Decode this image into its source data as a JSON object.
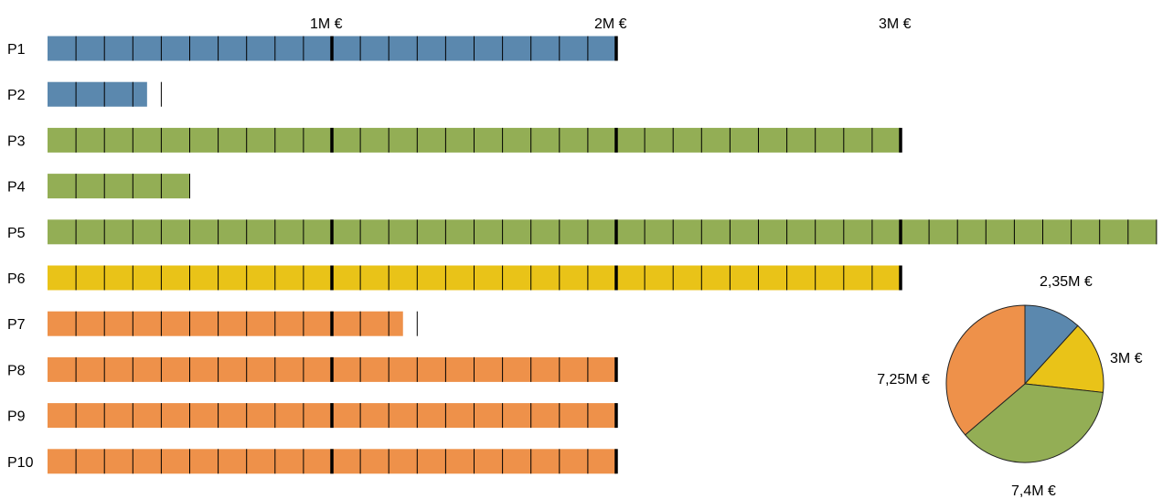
{
  "chart_data": [
    {
      "type": "bar",
      "orientation": "horizontal",
      "categories": [
        "P1",
        "P2",
        "P3",
        "P4",
        "P5",
        "P6",
        "P7",
        "P8",
        "P9",
        "P10"
      ],
      "values": [
        2000000,
        350000,
        3000000,
        500000,
        3900000,
        3000000,
        1250000,
        2000000,
        2000000,
        2000000
      ],
      "bar_colors": [
        "#5b88ae",
        "#5b88ae",
        "#93ae55",
        "#93ae55",
        "#93ae55",
        "#e9c318",
        "#ee914a",
        "#ee914a",
        "#ee914a",
        "#ee914a"
      ],
      "segment_value": 100000,
      "major_tick_value": 1000000,
      "xlim": [
        0,
        3900000
      ],
      "axis_position": "top",
      "grid": false,
      "ticks": [
        {
          "value": 1000000,
          "label": "1M €"
        },
        {
          "value": 2000000,
          "label": "2M €"
        },
        {
          "value": 3000000,
          "label": "3M €"
        }
      ]
    },
    {
      "type": "pie",
      "start_angle_deg": 0,
      "direction": "clockwise",
      "slices": [
        {
          "value": 2.35,
          "label": "2,35M €",
          "color": "#5b88ae"
        },
        {
          "value": 3.0,
          "label": "3M €",
          "color": "#e9c318"
        },
        {
          "value": 7.4,
          "label": "7,4M €",
          "color": "#93ae55"
        },
        {
          "value": 7.25,
          "label": "7,25M €",
          "color": "#ee914a"
        }
      ]
    }
  ]
}
